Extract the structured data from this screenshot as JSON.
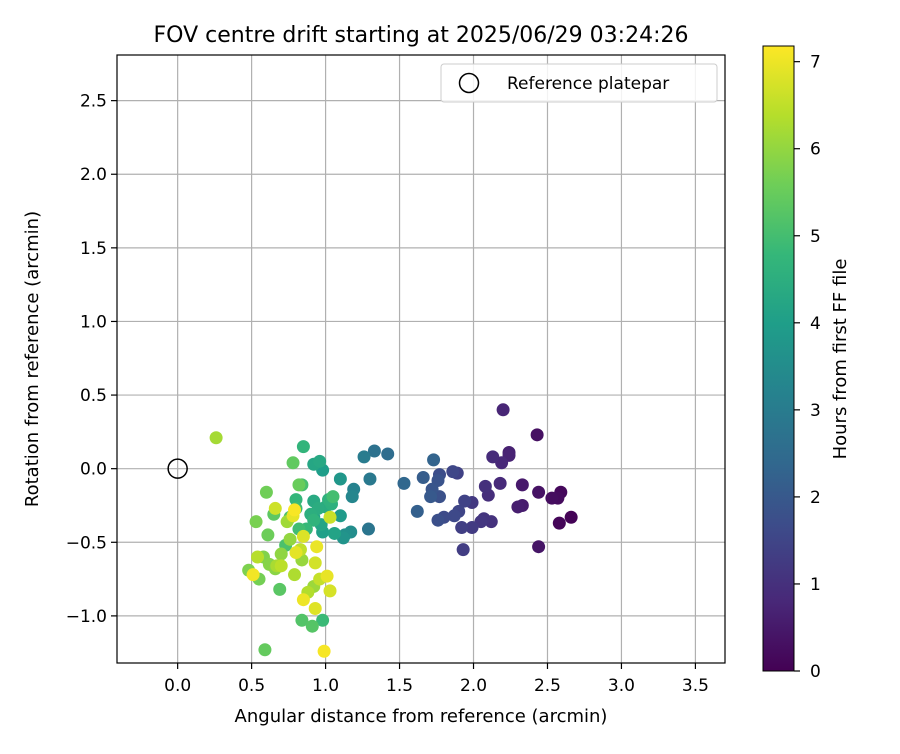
{
  "chart_data": {
    "type": "scatter",
    "title": "FOV centre drift starting at 2025/06/29 03:24:26",
    "xlabel": "Angular distance from reference (arcmin)",
    "ylabel": "Rotation from reference (arcmin)",
    "xlim": [
      -0.41,
      3.7
    ],
    "ylim": [
      -1.32,
      2.81
    ],
    "x_ticks": [
      0.0,
      0.5,
      1.0,
      1.5,
      2.0,
      2.5,
      3.0,
      3.5
    ],
    "x_tick_labels": [
      "0.0",
      "0.5",
      "1.0",
      "1.5",
      "2.0",
      "2.5",
      "3.0",
      "3.5"
    ],
    "y_ticks": [
      -1.0,
      -0.5,
      0.0,
      0.5,
      1.0,
      1.5,
      2.0,
      2.5
    ],
    "y_tick_labels": [
      "−1.0",
      "−0.5",
      "0.0",
      "0.5",
      "1.0",
      "1.5",
      "2.0",
      "2.5"
    ],
    "grid": true,
    "legend": {
      "position": "upper-right",
      "entries": [
        {
          "label": "Reference platepar",
          "marker": "open-circle"
        }
      ]
    },
    "reference_point": {
      "x": 0.0,
      "y": 0.0
    },
    "colorbar": {
      "label": "Hours from first FF file",
      "min": 0,
      "max": 7.18,
      "ticks": [
        0,
        1,
        2,
        3,
        4,
        5,
        6,
        7
      ],
      "tick_labels": [
        "0",
        "1",
        "2",
        "3",
        "4",
        "5",
        "6",
        "7"
      ],
      "colormap": "viridis",
      "colormap_stops": [
        "#440154",
        "#482878",
        "#3e4989",
        "#31688e",
        "#26828e",
        "#1f9e89",
        "#35b779",
        "#6ece58",
        "#b5de2b",
        "#fde725"
      ]
    },
    "points": [
      {
        "x": 2.66,
        "y": -0.33,
        "h": 0.05
      },
      {
        "x": 2.58,
        "y": -0.37,
        "h": 0.1
      },
      {
        "x": 2.59,
        "y": -0.16,
        "h": 0.15
      },
      {
        "x": 2.57,
        "y": -0.2,
        "h": 0.2
      },
      {
        "x": 2.53,
        "y": -0.2,
        "h": 0.25
      },
      {
        "x": 2.44,
        "y": -0.16,
        "h": 0.35
      },
      {
        "x": 2.43,
        "y": 0.23,
        "h": 0.3
      },
      {
        "x": 2.44,
        "y": -0.53,
        "h": 0.4
      },
      {
        "x": 2.33,
        "y": -0.11,
        "h": 0.5
      },
      {
        "x": 2.33,
        "y": -0.25,
        "h": 0.55
      },
      {
        "x": 2.3,
        "y": -0.26,
        "h": 0.6
      },
      {
        "x": 2.24,
        "y": 0.11,
        "h": 0.65
      },
      {
        "x": 2.24,
        "y": 0.09,
        "h": 0.7
      },
      {
        "x": 2.2,
        "y": 0.4,
        "h": 0.75
      },
      {
        "x": 2.19,
        "y": 0.04,
        "h": 0.8
      },
      {
        "x": 2.18,
        "y": -0.1,
        "h": 0.85
      },
      {
        "x": 2.13,
        "y": 0.08,
        "h": 0.9
      },
      {
        "x": 2.1,
        "y": -0.18,
        "h": 0.95
      },
      {
        "x": 2.08,
        "y": -0.12,
        "h": 1.0
      },
      {
        "x": 2.12,
        "y": -0.36,
        "h": 1.05
      },
      {
        "x": 2.07,
        "y": -0.34,
        "h": 1.1
      },
      {
        "x": 2.05,
        "y": -0.36,
        "h": 1.15
      },
      {
        "x": 1.99,
        "y": -0.23,
        "h": 1.2
      },
      {
        "x": 1.99,
        "y": -0.4,
        "h": 1.25
      },
      {
        "x": 1.93,
        "y": -0.55,
        "h": 1.3
      },
      {
        "x": 1.92,
        "y": -0.4,
        "h": 1.35
      },
      {
        "x": 1.89,
        "y": -0.03,
        "h": 1.4
      },
      {
        "x": 1.94,
        "y": -0.22,
        "h": 1.45
      },
      {
        "x": 1.9,
        "y": -0.29,
        "h": 1.5
      },
      {
        "x": 1.86,
        "y": -0.02,
        "h": 1.55
      },
      {
        "x": 1.87,
        "y": -0.32,
        "h": 1.6
      },
      {
        "x": 1.8,
        "y": -0.33,
        "h": 1.65
      },
      {
        "x": 1.77,
        "y": -0.04,
        "h": 1.7
      },
      {
        "x": 1.76,
        "y": -0.35,
        "h": 1.75
      },
      {
        "x": 1.77,
        "y": -0.19,
        "h": 1.8
      },
      {
        "x": 1.76,
        "y": -0.08,
        "h": 1.85
      },
      {
        "x": 1.72,
        "y": -0.14,
        "h": 1.9
      },
      {
        "x": 1.71,
        "y": -0.19,
        "h": 2.0
      },
      {
        "x": 1.66,
        "y": -0.06,
        "h": 2.1
      },
      {
        "x": 1.62,
        "y": -0.29,
        "h": 2.2
      },
      {
        "x": 1.73,
        "y": 0.06,
        "h": 2.3
      },
      {
        "x": 1.53,
        "y": -0.1,
        "h": 2.4
      },
      {
        "x": 1.42,
        "y": 0.1,
        "h": 2.55
      },
      {
        "x": 1.33,
        "y": 0.12,
        "h": 2.7
      },
      {
        "x": 1.29,
        "y": -0.41,
        "h": 2.8
      },
      {
        "x": 1.3,
        "y": -0.07,
        "h": 2.9
      },
      {
        "x": 1.26,
        "y": 0.08,
        "h": 3.0
      },
      {
        "x": 1.19,
        "y": -0.14,
        "h": 3.2
      },
      {
        "x": 1.18,
        "y": -0.19,
        "h": 3.3
      },
      {
        "x": 1.17,
        "y": -0.43,
        "h": 3.5
      },
      {
        "x": 1.13,
        "y": -0.45,
        "h": 3.6
      },
      {
        "x": 1.12,
        "y": -0.47,
        "h": 3.7
      },
      {
        "x": 1.1,
        "y": -0.07,
        "h": 3.8
      },
      {
        "x": 1.1,
        "y": -0.32,
        "h": 3.9
      },
      {
        "x": 0.98,
        "y": -0.01,
        "h": 4.0
      },
      {
        "x": 0.98,
        "y": -0.43,
        "h": 4.05
      },
      {
        "x": 0.92,
        "y": -0.33,
        "h": 4.1
      },
      {
        "x": 1.06,
        "y": -0.44,
        "h": 4.15
      },
      {
        "x": 0.97,
        "y": -0.38,
        "h": 4.2
      },
      {
        "x": 0.92,
        "y": 0.03,
        "h": 4.25
      },
      {
        "x": 0.96,
        "y": 0.05,
        "h": 4.3
      },
      {
        "x": 0.92,
        "y": -0.22,
        "h": 4.35
      },
      {
        "x": 1.0,
        "y": -0.26,
        "h": 4.4
      },
      {
        "x": 0.95,
        "y": -0.27,
        "h": 4.45
      },
      {
        "x": 0.9,
        "y": -0.31,
        "h": 4.5
      },
      {
        "x": 1.04,
        "y": -0.24,
        "h": 4.55
      },
      {
        "x": 1.02,
        "y": -0.21,
        "h": 4.6
      },
      {
        "x": 0.92,
        "y": -0.35,
        "h": 4.65
      },
      {
        "x": 0.85,
        "y": 0.15,
        "h": 4.7
      },
      {
        "x": 0.8,
        "y": -0.21,
        "h": 4.75
      },
      {
        "x": 0.87,
        "y": -0.41,
        "h": 4.8
      },
      {
        "x": 0.98,
        "y": -1.03,
        "h": 4.85
      },
      {
        "x": 0.8,
        "y": -0.27,
        "h": 4.9
      },
      {
        "x": 0.82,
        "y": -0.41,
        "h": 4.95
      },
      {
        "x": 1.05,
        "y": -0.19,
        "h": 5.0
      },
      {
        "x": 0.84,
        "y": -0.11,
        "h": 5.05
      },
      {
        "x": 0.73,
        "y": -0.52,
        "h": 5.1
      },
      {
        "x": 0.76,
        "y": -0.33,
        "h": 5.15
      },
      {
        "x": 0.84,
        "y": -1.03,
        "h": 5.2
      },
      {
        "x": 0.91,
        "y": -1.07,
        "h": 5.25
      },
      {
        "x": 0.69,
        "y": -0.82,
        "h": 5.3
      },
      {
        "x": 0.65,
        "y": -0.31,
        "h": 5.35
      },
      {
        "x": 0.78,
        "y": 0.04,
        "h": 5.4
      },
      {
        "x": 0.59,
        "y": -1.23,
        "h": 5.45
      },
      {
        "x": 0.82,
        "y": -0.11,
        "h": 5.5
      },
      {
        "x": 0.61,
        "y": -0.45,
        "h": 5.55
      },
      {
        "x": 0.6,
        "y": -0.16,
        "h": 5.6
      },
      {
        "x": 0.55,
        "y": -0.75,
        "h": 5.65
      },
      {
        "x": 0.53,
        "y": -0.36,
        "h": 5.7
      },
      {
        "x": 0.48,
        "y": -0.69,
        "h": 5.75
      },
      {
        "x": 0.58,
        "y": -0.6,
        "h": 5.8
      },
      {
        "x": 0.62,
        "y": -0.65,
        "h": 5.85
      },
      {
        "x": 0.66,
        "y": -0.68,
        "h": 5.9
      },
      {
        "x": 0.7,
        "y": -0.58,
        "h": 5.95
      },
      {
        "x": 0.76,
        "y": -0.48,
        "h": 6.0
      },
      {
        "x": 0.84,
        "y": -0.62,
        "h": 6.05
      },
      {
        "x": 0.92,
        "y": -0.8,
        "h": 6.1
      },
      {
        "x": 0.74,
        "y": -0.36,
        "h": 6.15
      },
      {
        "x": 0.26,
        "y": 0.21,
        "h": 6.2
      },
      {
        "x": 0.67,
        "y": -0.66,
        "h": 6.25
      },
      {
        "x": 0.79,
        "y": -0.72,
        "h": 6.3
      },
      {
        "x": 0.88,
        "y": -0.84,
        "h": 6.35
      },
      {
        "x": 0.54,
        "y": -0.6,
        "h": 6.4
      },
      {
        "x": 0.7,
        "y": -0.66,
        "h": 6.45
      },
      {
        "x": 0.83,
        "y": -0.55,
        "h": 6.5
      },
      {
        "x": 0.96,
        "y": -0.75,
        "h": 6.55
      },
      {
        "x": 1.03,
        "y": -0.33,
        "h": 6.6
      },
      {
        "x": 0.66,
        "y": -0.27,
        "h": 6.65
      },
      {
        "x": 0.93,
        "y": -0.64,
        "h": 6.7
      },
      {
        "x": 1.03,
        "y": -0.83,
        "h": 6.75
      },
      {
        "x": 0.85,
        "y": -0.46,
        "h": 6.8
      },
      {
        "x": 0.93,
        "y": -0.95,
        "h": 6.85
      },
      {
        "x": 0.8,
        "y": -0.57,
        "h": 6.9
      },
      {
        "x": 0.78,
        "y": -0.32,
        "h": 6.92
      },
      {
        "x": 1.01,
        "y": -0.73,
        "h": 6.95
      },
      {
        "x": 0.94,
        "y": -0.53,
        "h": 6.97
      },
      {
        "x": 0.85,
        "y": -0.89,
        "h": 7.0
      },
      {
        "x": 0.51,
        "y": -0.72,
        "h": 7.05
      },
      {
        "x": 0.99,
        "y": -1.24,
        "h": 7.1
      },
      {
        "x": 0.79,
        "y": -0.28,
        "h": 7.12
      }
    ]
  }
}
